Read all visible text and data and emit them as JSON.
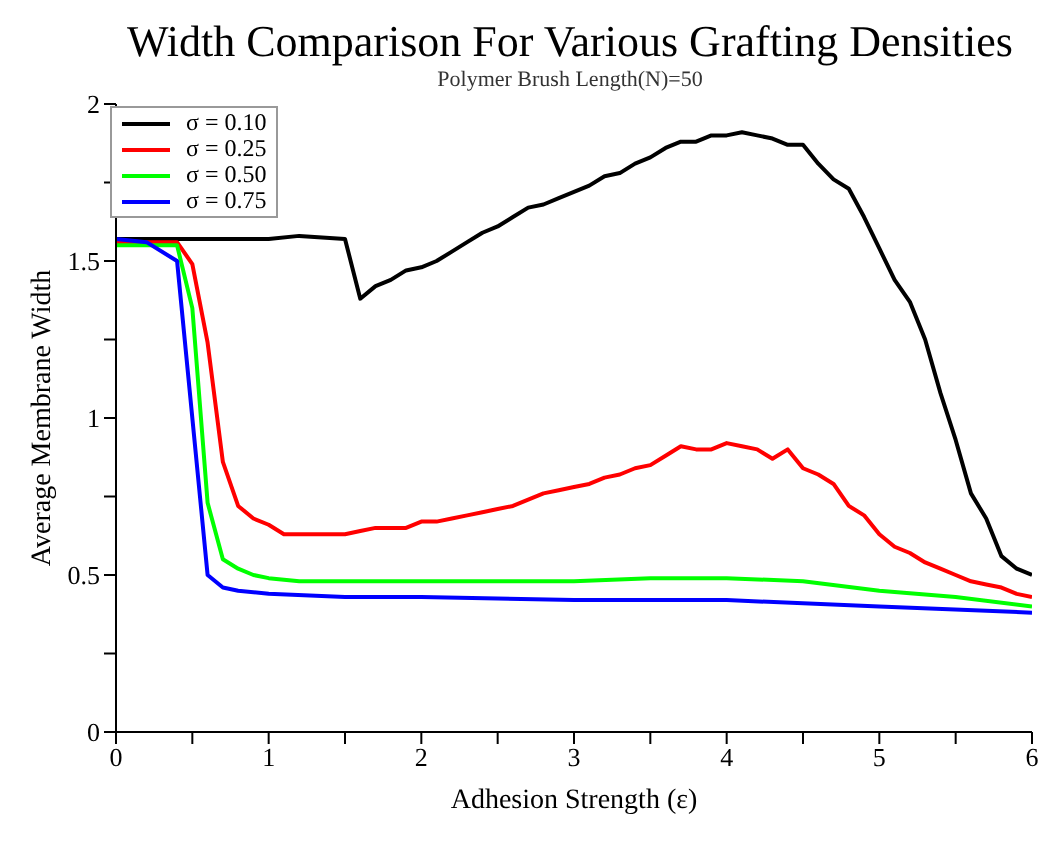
{
  "chart_data": {
    "type": "line",
    "title": "Width Comparison For Various Grafting Densities",
    "subtitle": "Polymer Brush Length(N)=50",
    "xlabel": "Adhesion Strength (ε)",
    "ylabel": "Average Membrane Width",
    "xlim": [
      0,
      6
    ],
    "xticks": [
      0,
      {
        "value": 0.5,
        "label": null
      },
      1,
      {
        "value": 1.5,
        "label": null
      },
      2,
      {
        "value": 2.5,
        "label": null
      },
      3,
      {
        "value": 3.5,
        "label": null
      },
      4,
      {
        "value": 4.5,
        "label": null
      },
      5,
      {
        "value": 5.5,
        "label": null
      },
      6
    ],
    "ylim": [
      0,
      2
    ],
    "yticks": [
      0,
      {
        "value": 0.25,
        "label": null
      },
      0.5,
      {
        "value": 0.75,
        "label": null
      },
      1,
      {
        "value": 1.25,
        "label": null
      },
      1.5,
      {
        "value": 1.75,
        "label": null
      },
      2
    ],
    "grid": false,
    "legend": "top left",
    "marker": "none",
    "line_style": "solid",
    "series": [
      {
        "name": "σ = 0.10",
        "color": "#000000",
        "x": [
          0,
          0.5,
          1.0,
          1.2,
          1.5,
          1.6,
          1.7,
          1.8,
          1.9,
          2.0,
          2.1,
          2.2,
          2.3,
          2.4,
          2.5,
          2.6,
          2.7,
          2.8,
          2.9,
          3.0,
          3.1,
          3.2,
          3.3,
          3.4,
          3.5,
          3.6,
          3.7,
          3.8,
          3.9,
          4.0,
          4.1,
          4.2,
          4.3,
          4.4,
          4.5,
          4.6,
          4.7,
          4.8,
          4.9,
          5.0,
          5.1,
          5.2,
          5.3,
          5.4,
          5.5,
          5.6,
          5.7,
          5.8,
          5.9,
          6.0
        ],
        "values": [
          1.57,
          1.57,
          1.57,
          1.58,
          1.57,
          1.38,
          1.42,
          1.44,
          1.47,
          1.48,
          1.5,
          1.53,
          1.56,
          1.59,
          1.61,
          1.64,
          1.67,
          1.68,
          1.7,
          1.72,
          1.74,
          1.77,
          1.78,
          1.81,
          1.83,
          1.86,
          1.88,
          1.88,
          1.9,
          1.9,
          1.91,
          1.9,
          1.89,
          1.87,
          1.87,
          1.81,
          1.76,
          1.73,
          1.64,
          1.54,
          1.44,
          1.37,
          1.25,
          1.08,
          0.93,
          0.76,
          0.68,
          0.56,
          0.52,
          0.5
        ]
      },
      {
        "name": "σ = 0.25",
        "color": "#ff0000",
        "x": [
          0,
          0.2,
          0.4,
          0.5,
          0.6,
          0.7,
          0.8,
          0.9,
          1.0,
          1.1,
          1.3,
          1.5,
          1.6,
          1.7,
          1.8,
          1.9,
          2.0,
          2.1,
          2.2,
          2.3,
          2.4,
          2.5,
          2.6,
          2.7,
          2.8,
          2.9,
          3.0,
          3.1,
          3.2,
          3.3,
          3.4,
          3.5,
          3.6,
          3.7,
          3.8,
          3.9,
          4.0,
          4.1,
          4.2,
          4.3,
          4.4,
          4.5,
          4.6,
          4.7,
          4.8,
          4.9,
          5.0,
          5.1,
          5.2,
          5.3,
          5.4,
          5.5,
          5.6,
          5.7,
          5.8,
          5.9,
          6.0
        ],
        "values": [
          1.56,
          1.56,
          1.56,
          1.49,
          1.24,
          0.86,
          0.72,
          0.68,
          0.66,
          0.63,
          0.63,
          0.63,
          0.64,
          0.65,
          0.65,
          0.65,
          0.67,
          0.67,
          0.68,
          0.69,
          0.7,
          0.71,
          0.72,
          0.74,
          0.76,
          0.77,
          0.78,
          0.79,
          0.81,
          0.82,
          0.84,
          0.85,
          0.88,
          0.91,
          0.9,
          0.9,
          0.92,
          0.91,
          0.9,
          0.87,
          0.9,
          0.84,
          0.82,
          0.79,
          0.72,
          0.69,
          0.63,
          0.59,
          0.57,
          0.54,
          0.52,
          0.5,
          0.48,
          0.47,
          0.46,
          0.44,
          0.43
        ]
      },
      {
        "name": "σ = 0.50",
        "color": "#00ff00",
        "x": [
          0,
          0.2,
          0.4,
          0.5,
          0.6,
          0.7,
          0.8,
          0.9,
          1.0,
          1.2,
          1.5,
          2.0,
          2.5,
          3.0,
          3.5,
          4.0,
          4.5,
          5.0,
          5.5,
          6.0
        ],
        "values": [
          1.55,
          1.55,
          1.55,
          1.35,
          0.73,
          0.55,
          0.52,
          0.5,
          0.49,
          0.48,
          0.48,
          0.48,
          0.48,
          0.48,
          0.49,
          0.49,
          0.48,
          0.45,
          0.43,
          0.4
        ]
      },
      {
        "name": "σ = 0.75",
        "color": "#0000ff",
        "x": [
          0,
          0.2,
          0.4,
          0.6,
          0.7,
          0.8,
          1.0,
          1.5,
          2.0,
          3.0,
          4.0,
          5.0,
          6.0
        ],
        "values": [
          1.57,
          1.56,
          1.5,
          0.5,
          0.46,
          0.45,
          0.44,
          0.43,
          0.43,
          0.42,
          0.42,
          0.4,
          0.38
        ]
      }
    ]
  }
}
